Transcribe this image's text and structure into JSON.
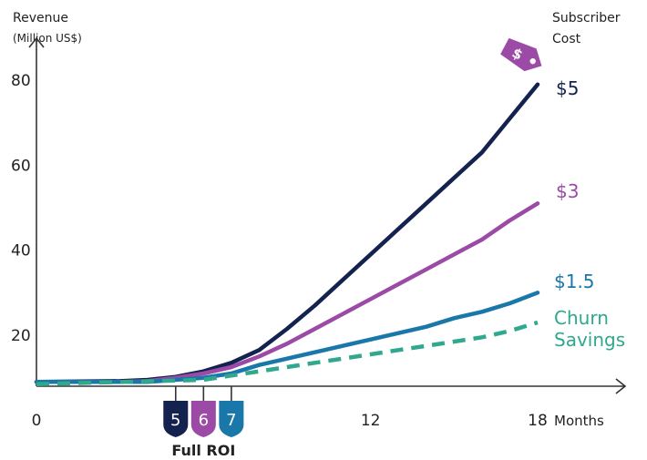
{
  "chart_data": {
    "type": "line",
    "y_axis_label_line1": "Revenue",
    "y_axis_label_line2": "(Million US$)",
    "right_label_line1": "Subscriber",
    "right_label_line2": "Cost",
    "xlabel": "Months",
    "x_ticks": [
      "0",
      "12",
      "18"
    ],
    "x_tick_values": [
      0,
      12,
      18
    ],
    "y_ticks": [
      "20",
      "40",
      "60",
      "80"
    ],
    "y_tick_values": [
      20,
      40,
      60,
      80
    ],
    "xlim": [
      0,
      20
    ],
    "ylim": [
      10,
      89
    ],
    "tag_icon_color": "#9b4aa6",
    "series": [
      {
        "name": "$5",
        "color": "#14224f",
        "dashed": false,
        "x": [
          0,
          3,
          4,
          5,
          6,
          7,
          8,
          9,
          10,
          11,
          12,
          13,
          14,
          15,
          16,
          17,
          18
        ],
        "y": [
          9,
          9.2,
          9.5,
          10.2,
          11.5,
          13.5,
          16.5,
          21.5,
          27,
          33,
          39,
          45,
          51,
          57,
          63,
          71,
          79
        ]
      },
      {
        "name": "$3",
        "color": "#9b4aa6",
        "dashed": false,
        "x": [
          0,
          3,
          4,
          5,
          6,
          7,
          8,
          9,
          10,
          11,
          12,
          13,
          14,
          15,
          16,
          17,
          18
        ],
        "y": [
          9,
          9,
          9.2,
          10,
          11,
          12.5,
          15,
          18,
          21.5,
          25,
          28.5,
          32,
          35.5,
          39,
          42.5,
          47,
          51
        ]
      },
      {
        "name": "$1.5",
        "color": "#1a77a9",
        "dashed": false,
        "x": [
          0,
          4,
          5,
          6,
          7,
          8,
          9,
          10,
          11,
          12,
          13,
          14,
          15,
          16,
          17,
          18
        ],
        "y": [
          9,
          9,
          9.5,
          10,
          11,
          13,
          14.5,
          16,
          17.5,
          19,
          20.5,
          22,
          24,
          25.5,
          27.5,
          30
        ]
      },
      {
        "name_line1": "Churn",
        "name_line2": "Savings",
        "color": "#2fa88e",
        "dashed": true,
        "x": [
          0,
          6,
          7,
          8,
          9,
          10,
          11,
          12,
          13,
          14,
          15,
          16,
          17,
          18
        ],
        "y": [
          8.5,
          9.5,
          10.5,
          11.5,
          12.5,
          13.5,
          14.5,
          15.5,
          16.5,
          17.5,
          18.5,
          19.5,
          21,
          23
        ]
      }
    ],
    "roi_markers": [
      {
        "label": "5",
        "month": 5,
        "color": "#14224f"
      },
      {
        "label": "6",
        "month": 6,
        "color": "#9b4aa6"
      },
      {
        "label": "7",
        "month": 7,
        "color": "#1a77a9"
      }
    ],
    "roi_caption": "Full ROI"
  }
}
